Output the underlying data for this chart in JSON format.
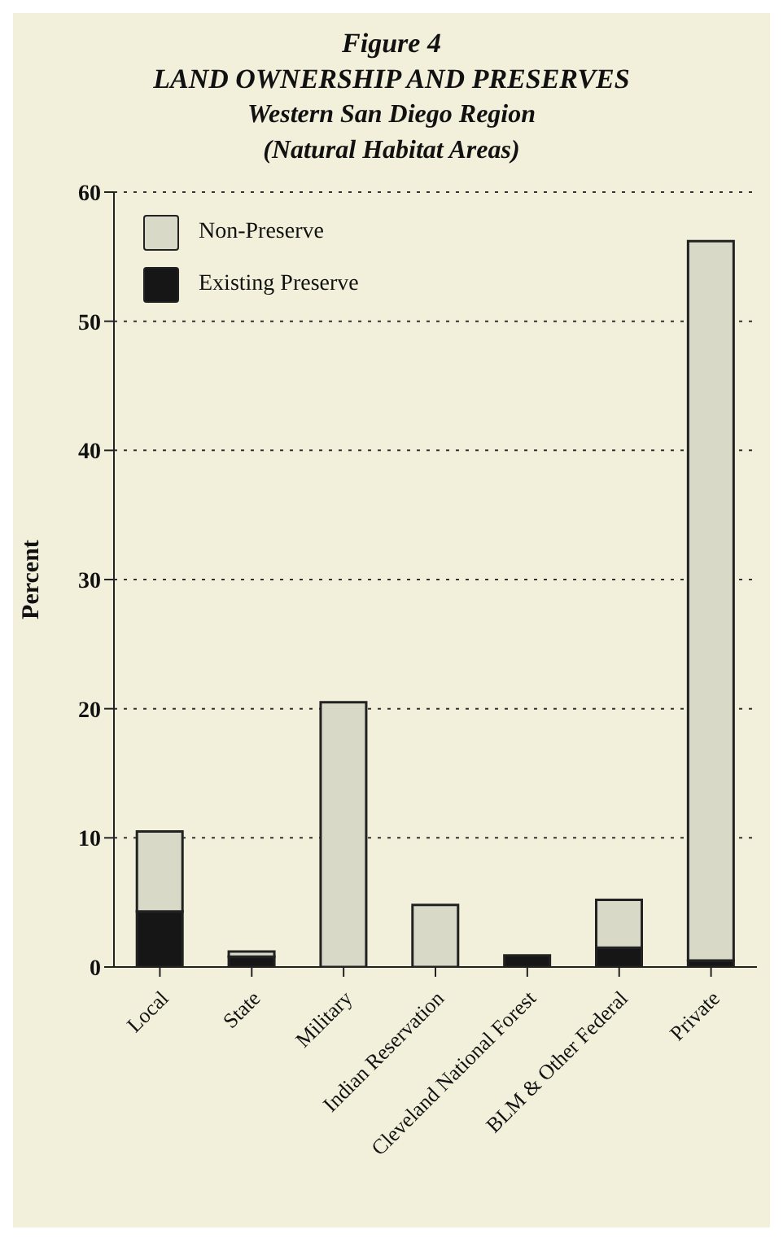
{
  "chart_data": {
    "type": "bar",
    "title": "Figure 4",
    "subtitle": "LAND OWNERSHIP AND PRESERVES\nWestern San Diego Region\n(Natural Habitat Areas)",
    "ylabel": "Percent",
    "categories": [
      "Local",
      "State",
      "Military",
      "Indian Reservation",
      "Cleveland National Forest",
      "BLM & Other Federal",
      "Private"
    ],
    "stacked": true,
    "series": [
      {
        "name": "Existing Preserve",
        "color": "#161616",
        "values": [
          4.3,
          0.8,
          0,
          0,
          0.9,
          1.5,
          0.5
        ]
      },
      {
        "name": "Non-Preserve",
        "color": "#d9d9c8",
        "values": [
          6.2,
          0.4,
          20.5,
          4.8,
          0,
          3.7,
          55.7
        ]
      }
    ],
    "ylim": [
      0,
      60
    ],
    "yticks": [
      0,
      10,
      20,
      30,
      40,
      50,
      60
    ],
    "grid": "y",
    "legend": "top left"
  }
}
